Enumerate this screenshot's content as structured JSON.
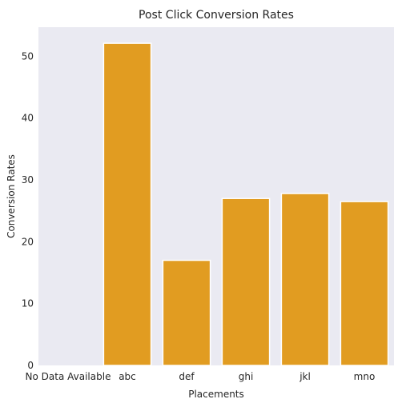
{
  "chart_data": {
    "type": "bar",
    "title": "Post Click Conversion Rates",
    "xlabel": "Placements",
    "ylabel": "Conversion Rates",
    "categories": [
      "No Data Available",
      "abc",
      "def",
      "ghi",
      "jkl",
      "mno"
    ],
    "values": [
      0,
      52.1,
      17.0,
      27.0,
      27.8,
      26.5
    ],
    "ylim": [
      0,
      54.7
    ],
    "yticks": [
      0,
      10,
      20,
      30,
      40,
      50
    ],
    "grid": false,
    "legend": "none",
    "colors": {
      "bar": "#E19C21",
      "bar_edge": "#ffffff",
      "plot_background": "#EAEAF2",
      "text": "#262626"
    }
  }
}
